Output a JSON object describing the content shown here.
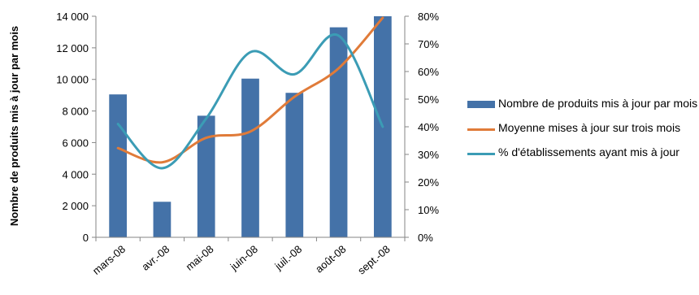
{
  "chart_data": {
    "type": "bar",
    "categories": [
      "mars-08",
      "avr.-08",
      "mai-08",
      "juin-08",
      "juil.-08",
      "août-08",
      "sept.-08"
    ],
    "series": [
      {
        "name": "Nombre de produits mis à jour par mois",
        "type": "bar",
        "axis": "left",
        "color": "#4472A8",
        "values": [
          9050,
          2250,
          7700,
          10050,
          9150,
          13300,
          14000
        ]
      },
      {
        "name": "Moyenne mises à jour sur trois mois",
        "type": "line",
        "axis": "left",
        "color": "#E07B39",
        "values": [
          5650,
          4750,
          6300,
          6700,
          8900,
          10700,
          13900
        ]
      },
      {
        "name": "% d'établissements ayant mis à jour",
        "type": "line",
        "axis": "right",
        "color": "#3B9CB5",
        "values": [
          0.41,
          0.25,
          0.43,
          0.67,
          0.59,
          0.73,
          0.4
        ]
      }
    ],
    "ylabel": "Nombre de produits mis à jour par mois",
    "ylim": [
      0,
      14000
    ],
    "yticks": [
      "0",
      "2 000",
      "4 000",
      "6 000",
      "8 000",
      "10 000",
      "12 000",
      "14 000"
    ],
    "y2lim": [
      0,
      0.8
    ],
    "y2ticks": [
      "0%",
      "10%",
      "20%",
      "30%",
      "40%",
      "50%",
      "60%",
      "70%",
      "80%"
    ],
    "grid": false,
    "legend_position": "right"
  }
}
